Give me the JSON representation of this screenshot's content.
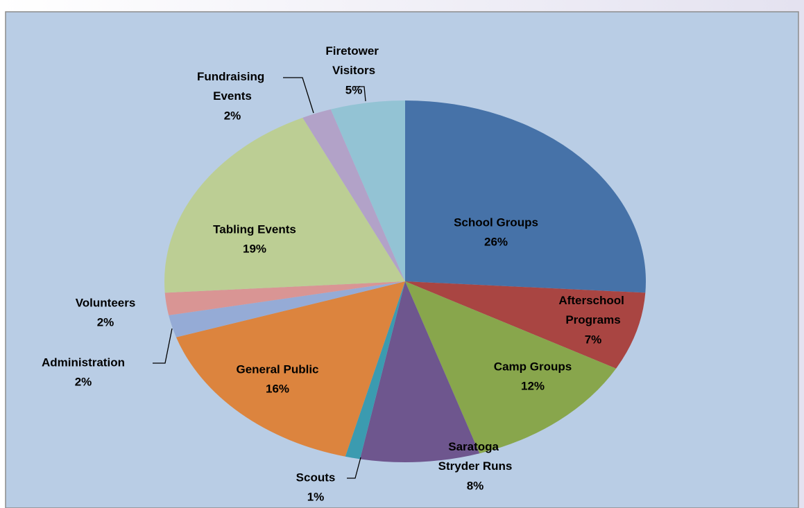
{
  "chart_data": {
    "type": "pie",
    "categories": [
      "School Groups",
      "Afterschool Programs",
      "Camp Groups",
      "Saratoga Stryder Runs",
      "Scouts",
      "General Public",
      "Administration",
      "Volunteers",
      "Tabling Events",
      "Fundraising Events",
      "Firetower Visitors"
    ],
    "values": [
      26,
      7,
      12,
      8,
      1,
      16,
      2,
      2,
      19,
      2,
      5
    ],
    "value_labels": [
      "26%",
      "7%",
      "12%",
      "8%",
      "1%",
      "16%",
      "2%",
      "2%",
      "19%",
      "2%",
      "5%"
    ],
    "colors": [
      "#4672a8",
      "#a94542",
      "#88a64c",
      "#6e568e",
      "#3b9bb0",
      "#dc843e",
      "#95abd6",
      "#d99594",
      "#bcce94",
      "#b2a2c8",
      "#93c3d4"
    ]
  }
}
